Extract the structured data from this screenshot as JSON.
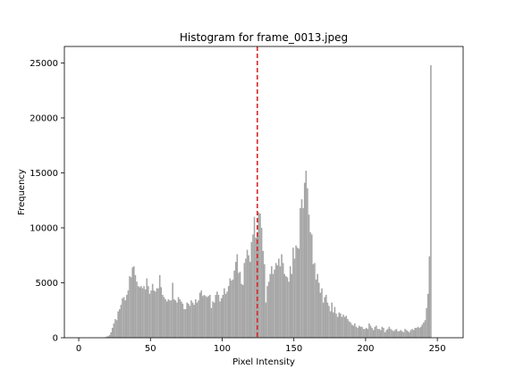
{
  "chart_data": {
    "type": "bar",
    "title": "Histogram for frame_0013.jpeg",
    "xlabel": "Pixel Intensity",
    "ylabel": "Frequency",
    "xlim": [
      -10,
      268
    ],
    "ylim": [
      0,
      26500
    ],
    "xticks": [
      0,
      50,
      100,
      150,
      200,
      250
    ],
    "yticks": [
      0,
      5000,
      10000,
      15000,
      20000,
      25000
    ],
    "bar_color": "#a6a6a6",
    "grid": false,
    "reference_line": {
      "x": 124.5,
      "color": "#d62728",
      "style": "dashed"
    },
    "bins": {
      "x_start": 0,
      "values": [
        0,
        0,
        0,
        0,
        0,
        0,
        0,
        0,
        0,
        0,
        0,
        0,
        0,
        0,
        0,
        0,
        0,
        0,
        50,
        100,
        150,
        250,
        500,
        900,
        1300,
        1700,
        1600,
        2400,
        2600,
        3000,
        3600,
        3700,
        3400,
        3900,
        4300,
        5600,
        5500,
        6400,
        6500,
        5700,
        5100,
        4700,
        4600,
        4700,
        4500,
        4700,
        4400,
        5400,
        4700,
        4000,
        4300,
        4900,
        4300,
        4200,
        4500,
        4500,
        5700,
        4600,
        3900,
        3700,
        3500,
        3300,
        3500,
        3400,
        3400,
        5000,
        3500,
        3400,
        3200,
        3700,
        3500,
        3300,
        3100,
        2600,
        2600,
        3200,
        3100,
        2900,
        3400,
        3200,
        3000,
        3500,
        3200,
        3400,
        4100,
        4300,
        3800,
        3900,
        3800,
        3700,
        3800,
        3900,
        2700,
        3300,
        3200,
        3900,
        4200,
        3900,
        3300,
        3600,
        3900,
        4500,
        4000,
        4200,
        4700,
        5400,
        5200,
        5300,
        6100,
        6900,
        7600,
        5900,
        6000,
        4900,
        4800,
        6800,
        7200,
        8000,
        7500,
        6900,
        8700,
        9400,
        11000,
        9100,
        9600,
        11400,
        11300,
        10000,
        7900,
        6700,
        3200,
        4700,
        5100,
        5800,
        6500,
        5800,
        6200,
        6800,
        6600,
        7200,
        6500,
        7600,
        6800,
        5800,
        5600,
        5500,
        5100,
        6500,
        5800,
        8200,
        7200,
        8400,
        8200,
        8100,
        11800,
        12600,
        11800,
        14100,
        15200,
        13600,
        11200,
        9600,
        9400,
        6700,
        6800,
        5300,
        5800,
        5000,
        4100,
        4500,
        3200,
        3700,
        3900,
        3200,
        2900,
        2400,
        3200,
        2300,
        2800,
        2200,
        1900,
        2300,
        2200,
        1900,
        2100,
        1900,
        2000,
        1700,
        1500,
        1400,
        1200,
        1100,
        1300,
        1000,
        900,
        1100,
        1000,
        1000,
        800,
        800,
        900,
        800,
        1300,
        1100,
        900,
        700,
        1000,
        1100,
        800,
        800,
        700,
        1000,
        900,
        500,
        700,
        800,
        1000,
        800,
        700,
        600,
        700,
        800,
        600,
        600,
        700,
        600,
        500,
        800,
        700,
        600,
        500,
        700,
        800,
        700,
        900,
        900,
        1000,
        900,
        1000,
        1200,
        1400,
        1600,
        2700,
        4000,
        7400,
        24800,
        0
      ]
    }
  }
}
